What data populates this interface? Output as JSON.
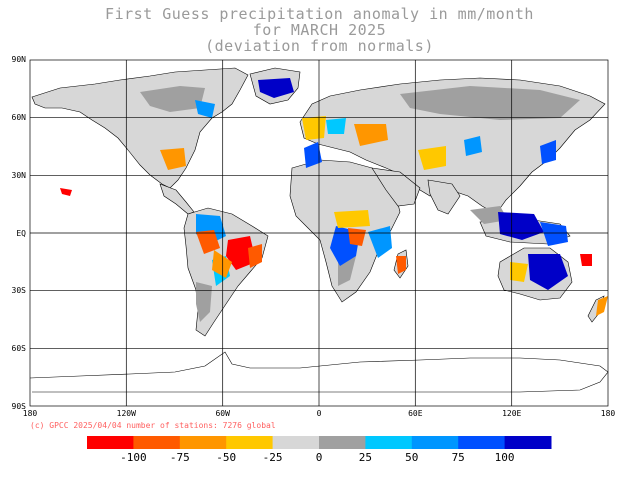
{
  "title": {
    "line1": "First Guess precipitation anomaly in mm/month",
    "line2": "for MARCH 2025",
    "line3": "(deviation from normals)"
  },
  "axes": {
    "lat_labels": [
      "90N",
      "60N",
      "30N",
      "EQ",
      "30S",
      "60S",
      "90S"
    ],
    "lon_labels": [
      "180",
      "120W",
      "60W",
      "0",
      "60E",
      "120E",
      "180"
    ]
  },
  "credit": "(c) GPCC 2025/04/04 number of stations: 7276 global",
  "legend": {
    "labels": [
      "-100",
      "-75",
      "-50",
      "-25",
      "0",
      "25",
      "50",
      "75",
      "100"
    ],
    "colors": [
      "#ff0000",
      "#ff5a00",
      "#ff9600",
      "#ffc800",
      "#d7d7d7",
      "#a0a0a0",
      "#00c8ff",
      "#0096ff",
      "#0050ff",
      "#0000c8"
    ]
  },
  "colors": {
    "grid": "#000000",
    "coast": "#000000",
    "no_anomaly": "#d7d7d7",
    "light_positive": "#a0a0a0"
  }
}
